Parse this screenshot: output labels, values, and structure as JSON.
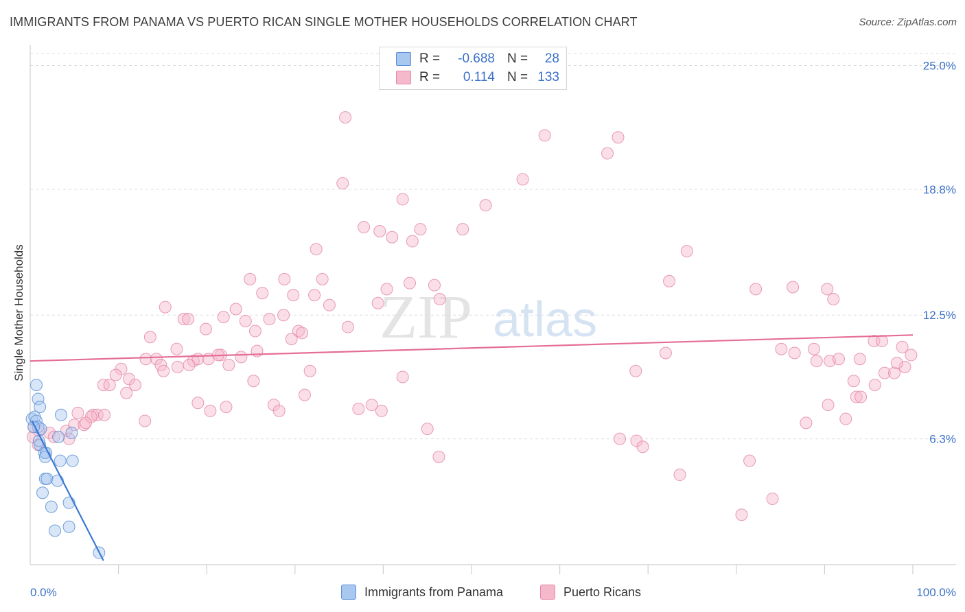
{
  "title": "IMMIGRANTS FROM PANAMA VS PUERTO RICAN SINGLE MOTHER HOUSEHOLDS CORRELATION CHART",
  "source": "Source: ZipAtlas.com",
  "watermark": {
    "zip": "ZIP",
    "atlas": "atlas"
  },
  "legend_top": [
    {
      "r_label": "R =",
      "r_value": "-0.688",
      "n_label": "N =",
      "n_value": "28",
      "color": "#a9c8f0"
    },
    {
      "r_label": "R =",
      "r_value": "0.114",
      "n_label": "N =",
      "n_value": "133",
      "color": "#f6b8cb"
    }
  ],
  "legend_bottom": [
    {
      "label": "Immigrants from Panama",
      "color": "#a9c8f0"
    },
    {
      "label": "Puerto Ricans",
      "color": "#f6b8cb"
    }
  ],
  "chart_data": {
    "type": "scatter",
    "xlabel": "",
    "ylabel": "Single Mother Households",
    "xlim": [
      0,
      100
    ],
    "ylim": [
      0,
      25.6
    ],
    "x_tick_labels": [
      "0.0%",
      "100.0%"
    ],
    "y_ticks": [
      6.3,
      12.5,
      18.8,
      25.0
    ],
    "y_tick_labels": [
      "6.3%",
      "12.5%",
      "18.8%",
      "25.0%"
    ],
    "grid": "horizontal-dashed",
    "series": [
      {
        "name": "Immigrants from Panama",
        "color": "#a9c8f0",
        "stroke": "#5b8fd6",
        "trend": {
          "x1": 0.2,
          "y1": 7.2,
          "x2": 8.3,
          "y2": 0.2,
          "color": "#3a78d4"
        },
        "points": [
          [
            0.7,
            9.0
          ],
          [
            0.9,
            8.3
          ],
          [
            1.1,
            7.9
          ],
          [
            0.2,
            7.3
          ],
          [
            0.5,
            7.4
          ],
          [
            0.7,
            7.2
          ],
          [
            0.9,
            6.9
          ],
          [
            1.2,
            6.8
          ],
          [
            1.1,
            6.0
          ],
          [
            1.6,
            5.6
          ],
          [
            1.8,
            5.6
          ],
          [
            3.5,
            7.5
          ],
          [
            4.7,
            6.6
          ],
          [
            4.8,
            5.2
          ],
          [
            1.7,
            5.4
          ],
          [
            3.4,
            5.2
          ],
          [
            1.7,
            4.3
          ],
          [
            1.9,
            4.3
          ],
          [
            3.1,
            4.2
          ],
          [
            1.4,
            3.6
          ],
          [
            2.4,
            2.9
          ],
          [
            4.4,
            3.1
          ],
          [
            2.8,
            1.7
          ],
          [
            4.4,
            1.9
          ],
          [
            7.8,
            0.6
          ],
          [
            1.0,
            6.2
          ],
          [
            3.2,
            6.4
          ],
          [
            0.4,
            6.9
          ]
        ]
      },
      {
        "name": "Puerto Ricans",
        "color": "#f6b8cb",
        "stroke": "#e48aa6",
        "trend": {
          "x1": 0,
          "y1": 10.2,
          "x2": 100,
          "y2": 11.5,
          "color": "#e46e95"
        },
        "points": [
          [
            35.7,
            22.4
          ],
          [
            58.3,
            21.5
          ],
          [
            66.6,
            21.4
          ],
          [
            65.4,
            20.6
          ],
          [
            35.4,
            19.1
          ],
          [
            55.8,
            19.3
          ],
          [
            42.2,
            18.3
          ],
          [
            51.6,
            18.0
          ],
          [
            37.8,
            16.9
          ],
          [
            39.6,
            16.7
          ],
          [
            44.2,
            16.8
          ],
          [
            49.0,
            16.8
          ],
          [
            41.0,
            16.4
          ],
          [
            43.3,
            16.2
          ],
          [
            32.4,
            15.8
          ],
          [
            74.4,
            15.7
          ],
          [
            24.9,
            14.3
          ],
          [
            28.8,
            14.3
          ],
          [
            33.1,
            14.3
          ],
          [
            43.0,
            14.1
          ],
          [
            45.8,
            14.0
          ],
          [
            72.4,
            14.2
          ],
          [
            40.4,
            13.8
          ],
          [
            82.2,
            13.8
          ],
          [
            86.4,
            13.9
          ],
          [
            90.3,
            13.8
          ],
          [
            26.3,
            13.6
          ],
          [
            29.8,
            13.5
          ],
          [
            32.2,
            13.5
          ],
          [
            46.4,
            13.3
          ],
          [
            91.0,
            13.3
          ],
          [
            15.3,
            12.9
          ],
          [
            23.3,
            12.8
          ],
          [
            39.4,
            13.1
          ],
          [
            33.9,
            13.0
          ],
          [
            17.4,
            12.3
          ],
          [
            17.9,
            12.3
          ],
          [
            21.9,
            12.4
          ],
          [
            24.4,
            12.2
          ],
          [
            27.1,
            12.3
          ],
          [
            28.7,
            12.5
          ],
          [
            19.9,
            11.8
          ],
          [
            25.5,
            11.7
          ],
          [
            36.0,
            11.9
          ],
          [
            30.4,
            11.7
          ],
          [
            30.8,
            11.6
          ],
          [
            29.6,
            11.3
          ],
          [
            13.6,
            11.4
          ],
          [
            16.6,
            10.8
          ],
          [
            21.6,
            10.5
          ],
          [
            25.7,
            10.7
          ],
          [
            72.0,
            10.6
          ],
          [
            85.1,
            10.8
          ],
          [
            86.6,
            10.6
          ],
          [
            88.8,
            10.8
          ],
          [
            95.6,
            11.2
          ],
          [
            96.5,
            11.2
          ],
          [
            98.8,
            10.9
          ],
          [
            99.8,
            10.5
          ],
          [
            13.1,
            10.3
          ],
          [
            14.3,
            10.3
          ],
          [
            18.5,
            10.2
          ],
          [
            19.0,
            10.3
          ],
          [
            20.2,
            10.3
          ],
          [
            21.3,
            10.5
          ],
          [
            23.9,
            10.4
          ],
          [
            89.1,
            10.2
          ],
          [
            90.6,
            10.2
          ],
          [
            91.6,
            10.3
          ],
          [
            94.0,
            10.3
          ],
          [
            14.8,
            10.0
          ],
          [
            16.7,
            9.9
          ],
          [
            18.0,
            10.0
          ],
          [
            22.5,
            10.0
          ],
          [
            10.3,
            9.8
          ],
          [
            15.1,
            9.7
          ],
          [
            31.7,
            9.7
          ],
          [
            42.2,
            9.4
          ],
          [
            68.6,
            9.7
          ],
          [
            96.8,
            9.6
          ],
          [
            97.9,
            9.6
          ],
          [
            99.1,
            9.9
          ],
          [
            98.2,
            10.1
          ],
          [
            9.7,
            9.5
          ],
          [
            11.2,
            9.3
          ],
          [
            11.9,
            9.0
          ],
          [
            8.3,
            9.0
          ],
          [
            9.0,
            9.0
          ],
          [
            25.3,
            9.2
          ],
          [
            93.3,
            9.2
          ],
          [
            95.7,
            9.0
          ],
          [
            10.9,
            8.6
          ],
          [
            31.1,
            8.5
          ],
          [
            93.6,
            8.4
          ],
          [
            94.1,
            8.4
          ],
          [
            19.0,
            8.1
          ],
          [
            27.6,
            8.0
          ],
          [
            22.2,
            7.9
          ],
          [
            37.2,
            7.8
          ],
          [
            38.7,
            8.0
          ],
          [
            90.4,
            8.0
          ],
          [
            5.4,
            7.6
          ],
          [
            7.1,
            7.5
          ],
          [
            7.6,
            7.5
          ],
          [
            8.4,
            7.5
          ],
          [
            6.9,
            7.4
          ],
          [
            20.4,
            7.7
          ],
          [
            28.2,
            7.7
          ],
          [
            39.8,
            7.7
          ],
          [
            1.0,
            6.7
          ],
          [
            2.2,
            6.6
          ],
          [
            4.1,
            6.7
          ],
          [
            5.0,
            7.0
          ],
          [
            6.1,
            7.0
          ],
          [
            6.3,
            7.1
          ],
          [
            13.0,
            7.2
          ],
          [
            45.0,
            6.8
          ],
          [
            92.4,
            7.3
          ],
          [
            87.9,
            7.1
          ],
          [
            0.3,
            6.4
          ],
          [
            0.9,
            6.0
          ],
          [
            2.7,
            6.4
          ],
          [
            4.4,
            6.3
          ],
          [
            0.4,
            6.9
          ],
          [
            66.8,
            6.3
          ],
          [
            68.7,
            6.2
          ],
          [
            69.4,
            5.9
          ],
          [
            46.3,
            5.4
          ],
          [
            81.5,
            5.2
          ],
          [
            73.6,
            4.5
          ],
          [
            84.1,
            3.3
          ],
          [
            80.6,
            2.5
          ]
        ]
      }
    ]
  }
}
